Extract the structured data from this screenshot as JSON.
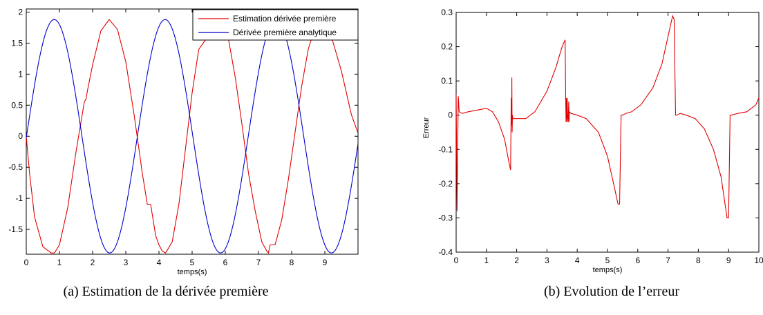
{
  "chart_data": [
    {
      "type": "line",
      "xlabel": "temps(s)",
      "ylabel": "",
      "xlim": [
        0,
        10
      ],
      "ylim": [
        -1.9,
        2.05
      ],
      "xticks": [
        0,
        1,
        2,
        3,
        4,
        5,
        6,
        7,
        8,
        9
      ],
      "yticks": [
        -1.5,
        -1,
        -0.5,
        0,
        0.5,
        1,
        1.5,
        2
      ],
      "xtick_labels": [
        "0",
        "1",
        "2",
        "3",
        "4",
        "5",
        "6",
        "7",
        "8",
        "9"
      ],
      "ytick_labels": [
        "-1.5",
        "-1",
        "-0.5",
        "0",
        "0.5",
        "1",
        "1.5",
        "2"
      ],
      "grid": false,
      "legend_position": "top-right",
      "caption": "(a)  Estimation de la dérivée première",
      "series": [
        {
          "name": "Estimation dérivée première",
          "color": "#e00000",
          "x": [
            0,
            0.1,
            0.25,
            0.5,
            0.75,
            0.85,
            1.0,
            1.25,
            1.5,
            1.75,
            1.8,
            1.85,
            2.0,
            2.25,
            2.5,
            2.75,
            3.0,
            3.25,
            3.5,
            3.65,
            3.75,
            3.9,
            4.0,
            4.1,
            4.2,
            4.4,
            4.6,
            4.8,
            5.0,
            5.2,
            5.4,
            5.5,
            5.7,
            5.9,
            6.1,
            6.3,
            6.5,
            6.7,
            6.9,
            7.1,
            7.25,
            7.3,
            7.35,
            7.5,
            7.7,
            7.9,
            8.1,
            8.3,
            8.5,
            8.7,
            8.9,
            9.0,
            9.2,
            9.5,
            9.8,
            10.0
          ],
          "y": [
            0,
            -0.6,
            -1.3,
            -1.78,
            -1.88,
            -1.88,
            -1.75,
            -1.15,
            -0.25,
            0.55,
            0.6,
            0.75,
            1.15,
            1.7,
            1.88,
            1.72,
            1.2,
            0.35,
            -0.6,
            -1.1,
            -1.1,
            -1.6,
            -1.75,
            -1.85,
            -1.88,
            -1.7,
            -1.1,
            -0.2,
            0.7,
            1.4,
            1.55,
            1.6,
            1.75,
            1.8,
            1.55,
            0.95,
            0.2,
            -0.6,
            -1.2,
            -1.7,
            -1.85,
            -1.88,
            -1.75,
            -1.75,
            -1.35,
            -0.7,
            0.05,
            0.8,
            1.4,
            1.75,
            1.72,
            1.72,
            1.6,
            1.05,
            0.35,
            0.05
          ]
        },
        {
          "name": "Dérivée première analytique",
          "color": "#0000cc",
          "function": "1.88*sin(1.88*(t-3.35))",
          "t_range": [
            0,
            10
          ]
        }
      ]
    },
    {
      "type": "line",
      "xlabel": "temps(s)",
      "ylabel": "Erreur",
      "xlim": [
        0,
        10
      ],
      "ylim": [
        -0.4,
        0.3
      ],
      "xticks": [
        0,
        1,
        2,
        3,
        4,
        5,
        6,
        7,
        8,
        9,
        10
      ],
      "yticks": [
        -0.4,
        -0.3,
        -0.2,
        -0.1,
        0,
        0.1,
        0.2,
        0.3
      ],
      "xtick_labels": [
        "0",
        "1",
        "2",
        "3",
        "4",
        "5",
        "6",
        "7",
        "8",
        "9",
        "10"
      ],
      "ytick_labels": [
        "-0.4",
        "-0.3",
        "-0.2",
        "-0.1",
        "0",
        "0.1",
        "0.2",
        "0.3"
      ],
      "grid": false,
      "caption": "(b)  Evolution de l’erreur",
      "series": [
        {
          "name": "",
          "color": "#e00000",
          "x": [
            0,
            0.03,
            0.05,
            0.07,
            0.1,
            0.2,
            0.4,
            0.7,
            1.0,
            1.2,
            1.4,
            1.6,
            1.75,
            1.8,
            1.82,
            1.83,
            1.84,
            1.85,
            1.86,
            1.87,
            1.9,
            2.0,
            2.1,
            2.3,
            2.6,
            3.0,
            3.3,
            3.5,
            3.6,
            3.62,
            3.63,
            3.64,
            3.66,
            3.67,
            3.68,
            3.7,
            3.72,
            3.73,
            3.74,
            3.8,
            4.0,
            4.3,
            4.7,
            5.0,
            5.2,
            5.35,
            5.4,
            5.45,
            5.5,
            5.6,
            5.8,
            6.1,
            6.5,
            6.8,
            7.0,
            7.15,
            7.2,
            7.25,
            7.3,
            7.4,
            7.6,
            7.9,
            8.2,
            8.5,
            8.75,
            8.95,
            9.0,
            9.05,
            9.1,
            9.3,
            9.6,
            9.9,
            10.0
          ],
          "y": [
            0.06,
            -0.28,
            -0.1,
            0.055,
            0.01,
            0.005,
            0.01,
            0.015,
            0.02,
            0.01,
            -0.02,
            -0.07,
            -0.14,
            -0.16,
            0.05,
            -0.03,
            0.11,
            -0.05,
            0.0,
            -0.01,
            -0.01,
            -0.01,
            -0.01,
            -0.01,
            0.01,
            0.07,
            0.14,
            0.2,
            0.22,
            0.03,
            -0.02,
            0.05,
            -0.02,
            0.05,
            0.0,
            -0.02,
            0.04,
            -0.02,
            0.01,
            0.005,
            0.0,
            -0.01,
            -0.05,
            -0.12,
            -0.2,
            -0.26,
            -0.26,
            0.0,
            0.0,
            0.005,
            0.01,
            0.03,
            0.08,
            0.15,
            0.23,
            0.29,
            0.28,
            0.0,
            0.0,
            0.005,
            0.0,
            -0.01,
            -0.04,
            -0.1,
            -0.18,
            -0.3,
            -0.3,
            0.0,
            0.0,
            0.005,
            0.01,
            0.03,
            0.05
          ]
        }
      ]
    }
  ]
}
